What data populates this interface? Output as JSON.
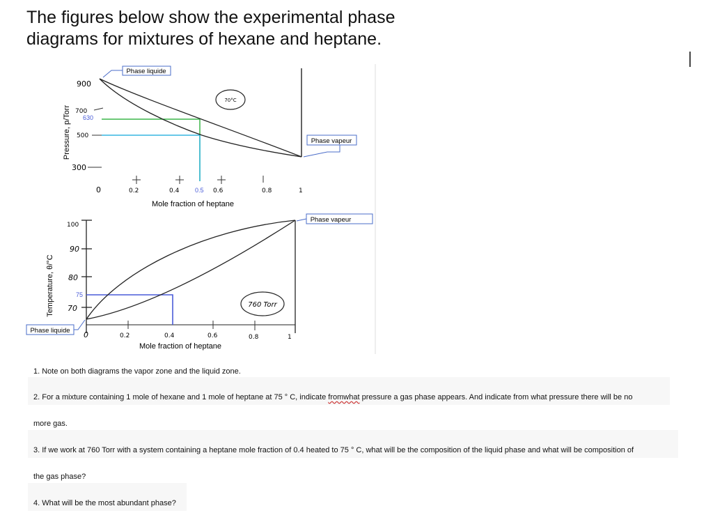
{
  "title": {
    "line1": "The figures below show the experimental phase",
    "line2": "diagrams for mixtures of hexane and heptane."
  },
  "pressure_diagram": {
    "ylabel": "Pressure, p/Torr",
    "xlabel": "Mole fraction of heptane",
    "y_ticks": [
      "900",
      "700",
      "630",
      "500",
      "300"
    ],
    "x_ticks": [
      "0",
      "0.2",
      "0.4",
      "0.5",
      "0.6",
      "0.8",
      "1"
    ],
    "temperature_note": "70°C",
    "label_liquid": "Phase liquide",
    "label_vapor": "Phase vapeur"
  },
  "temperature_diagram": {
    "ylabel": "Temperature, θ/°C",
    "xlabel": "Mole fraction of heptane",
    "y_ticks": [
      "100",
      "90",
      "80",
      "75",
      "70"
    ],
    "x_ticks": [
      "0",
      "0.2",
      "0.4",
      "0.6",
      "0.8",
      "1"
    ],
    "pressure_note": "760 Torr",
    "label_liquid": "Phase liquide",
    "label_vapor": "Phase vapeur"
  },
  "questions": {
    "q1": "1. Note on both diagrams the vapor zone and the liquid zone.",
    "q2_a": "2. For a mixture containing 1 mole of hexane and 1 mole of heptane at 75 ° C, indicate ",
    "q2_b": "fromwhat",
    "q2_c": " pressure a gas phase appears. And indicate from what pressure there will be no",
    "q2_d": "more gas.",
    "q3_a": "3. If we work at 760 Torr with a system containing a heptane mole fraction of 0.4 heated to 75 ° C, what will be the composition of the liquid phase and what will be composition of",
    "q3_b": "the gas phase?",
    "q4": "4. What will be the most abundant phase?"
  },
  "colors": {
    "curve": "#222222",
    "green_guide": "#3cb54a",
    "cyan_guide": "#37b6e0",
    "blue_guide": "#4a5cd8",
    "label_border": "#4a6cc8",
    "tick_blue": "#4a5cd8",
    "check_green": "#2a8a2a"
  }
}
